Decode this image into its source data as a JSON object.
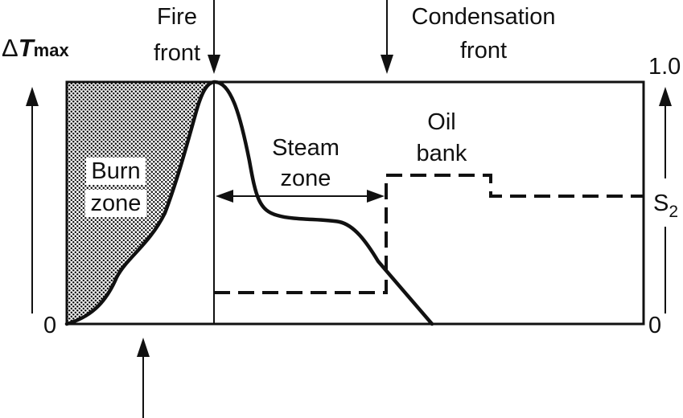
{
  "y_left": {
    "title_symbol": "Δ",
    "title_var": "T",
    "title_sub": "max",
    "tick_top": "",
    "tick_bottom": "0"
  },
  "y_right": {
    "tick_top": "1.0",
    "tick_bottom": "0",
    "series_label_main": "S",
    "series_label_sub": "2"
  },
  "labels": {
    "fire_front_line1": "Fire",
    "fire_front_line2": "front",
    "condensation_line1": "Condensation",
    "condensation_line2": "front",
    "steam_line1": "Steam",
    "steam_line2": "zone",
    "oil_line1": "Oil",
    "oil_line2": "bank",
    "burn_line1": "Burn",
    "burn_line2": "zone"
  },
  "colors": {
    "ink": "#111111",
    "background": "#ffffff"
  }
}
